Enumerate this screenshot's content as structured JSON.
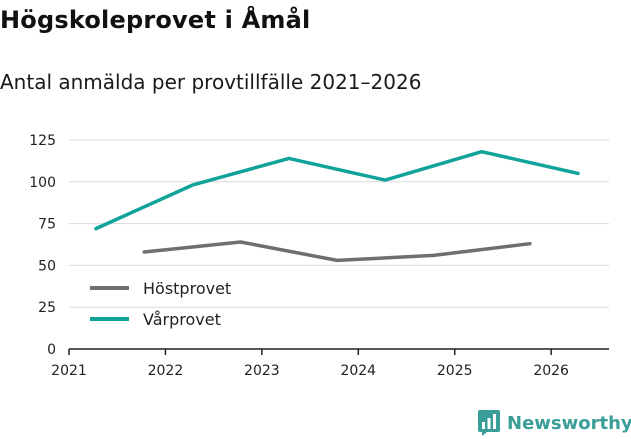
{
  "chart_data": {
    "type": "line",
    "title": "Högskoleprovet i Åmål",
    "subtitle": "Antal anmälda per provtillfälle 2021–2026",
    "xlabel": "",
    "ylabel": "",
    "ylim": [
      0,
      125
    ],
    "yticks": [
      0,
      25,
      50,
      75,
      100,
      125
    ],
    "xlim": [
      2021,
      2026.6
    ],
    "xticks": [
      2021,
      2022,
      2023,
      2024,
      2025,
      2026
    ],
    "xtick_labels": [
      "2021",
      "2022",
      "2023",
      "2024",
      "2025",
      "2026"
    ],
    "ytick_labels": [
      "0",
      "25",
      "50",
      "75",
      "100",
      "125"
    ],
    "grid": true,
    "legend_position": "bottom-left",
    "series": [
      {
        "name": "Höstprovet",
        "color": "#6f6e73",
        "x": [
          2021.78,
          2022.78,
          2023.78,
          2024.78,
          2025.78
        ],
        "values": [
          58,
          64,
          53,
          56,
          63
        ]
      },
      {
        "name": "Vårprovet",
        "color": "#10a399",
        "x": [
          2021.28,
          2022.28,
          2023.28,
          2024.28,
          2025.28,
          2026.28
        ],
        "values": [
          72,
          98,
          114,
          101,
          118,
          105
        ]
      }
    ]
  },
  "brand": {
    "name": "Newsworthy",
    "icon": "bar-chart-icon",
    "color": "#3a9e98"
  }
}
